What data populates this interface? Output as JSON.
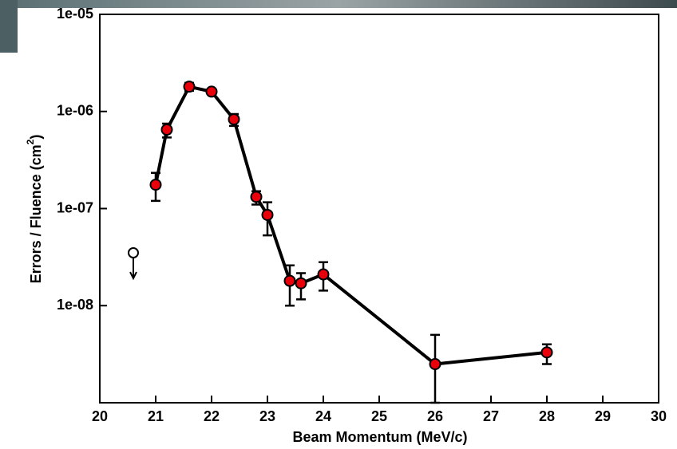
{
  "chart_data": {
    "type": "errorbar-line",
    "x_label": "Beam Momentum (MeV/c)",
    "y_label": "Errors / Fluence (cm",
    "y_label_sup": "2",
    "y_label_end": ")",
    "log_y": true,
    "xlim": [
      20,
      30
    ],
    "xticks": [
      20,
      21,
      22,
      23,
      24,
      25,
      26,
      27,
      28,
      29,
      30
    ],
    "ylim": [
      1e-09,
      1e-05
    ],
    "yticks": [
      {
        "value": 1e-05,
        "label": "1e-05"
      },
      {
        "value": 1e-06,
        "label": "1e-06"
      },
      {
        "value": 1e-07,
        "label": "1e-07"
      },
      {
        "value": 1e-08,
        "label": "1e-08"
      }
    ],
    "color": "#e8000b",
    "x": [
      21.0,
      21.2,
      21.6,
      22.0,
      22.4,
      22.8,
      23.0,
      23.4,
      23.6,
      24.0,
      26.0,
      28.0
    ],
    "values": [
      1.76e-07,
      6.5e-07,
      1.8e-06,
      1.6e-06,
      8.3e-07,
      1.32e-07,
      8.6e-08,
      1.8e-08,
      1.7e-08,
      2.1e-08,
      2.5e-09,
      3.3e-09
    ],
    "lower": [
      1.2e-07,
      5.4e-07,
      1.63e-06,
      1.51e-06,
      7.1e-07,
      1.1e-07,
      5.3e-08,
      1e-08,
      1.16e-08,
      1.43e-08,
      1e-09,
      2.5e-09
    ],
    "upper": [
      2.33e-07,
      7.5e-07,
      1.97e-06,
      1.69e-06,
      9.4e-07,
      1.51e-07,
      1.16e-07,
      2.6e-08,
      2.16e-08,
      2.8e-08,
      5e-09,
      4e-09
    ],
    "upper_limit": {
      "x": [
        20.6
      ],
      "values": [
        3.5e-08
      ]
    }
  }
}
